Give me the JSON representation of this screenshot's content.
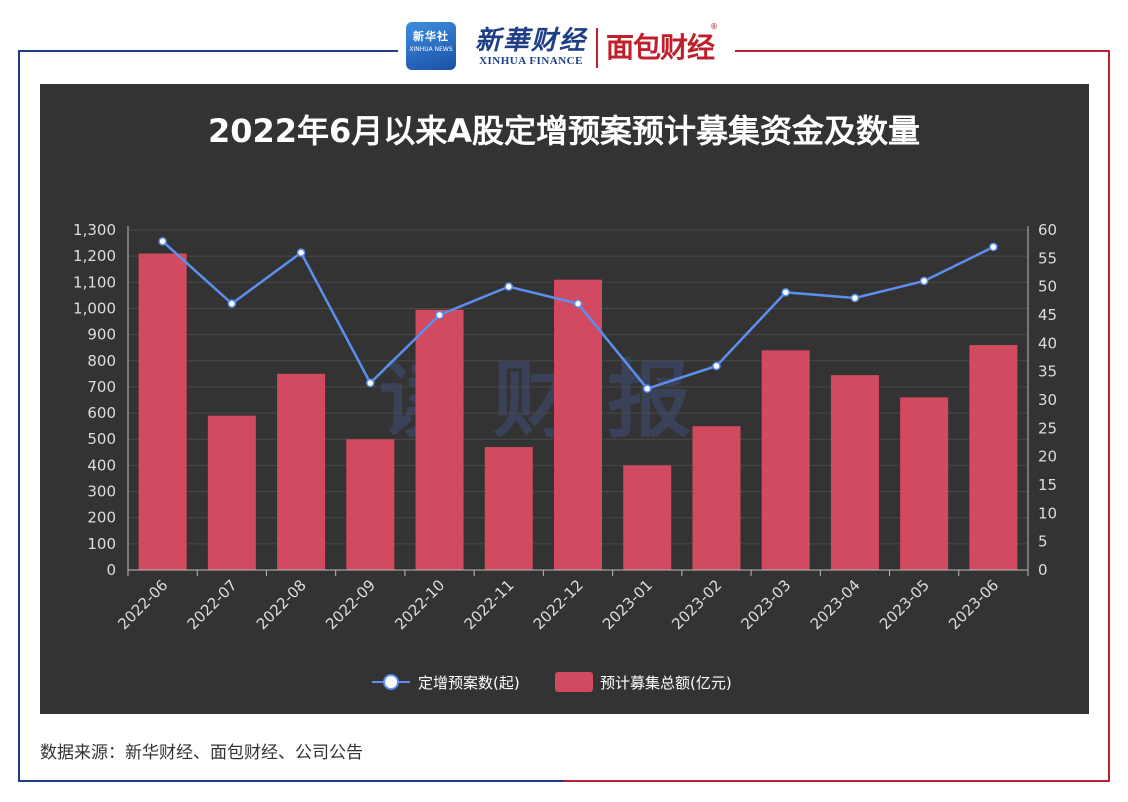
{
  "header": {
    "xinhua_badge_cn": "新华社",
    "xinhua_badge_en": "XINHUA NEWS",
    "xinhua_finance_cn": "新華财经",
    "xinhua_finance_en": "XINHUA FINANCE",
    "mianbao": "面包财经",
    "registered": "®"
  },
  "watermark": "读财报",
  "footer": {
    "source": "数据来源：新华财经、面包财经、公司公告"
  },
  "colors": {
    "bar": "#d24a5f",
    "line": "#5b8ff0",
    "panel": "#333333",
    "frame_blue": "#1e3f86",
    "frame_red": "#b8232f"
  },
  "chart_data": {
    "type": "bar",
    "title": "2022年6月以来A股定增预案预计募集资金及数量",
    "categories": [
      "2022-06",
      "2022-07",
      "2022-08",
      "2022-09",
      "2022-10",
      "2022-11",
      "2022-12",
      "2023-01",
      "2023-02",
      "2023-03",
      "2023-04",
      "2023-05",
      "2023-06"
    ],
    "series": [
      {
        "name": "预计募集总额(亿元)",
        "type": "bar",
        "axis": "left",
        "values": [
          1210,
          590,
          750,
          500,
          995,
          470,
          1110,
          400,
          550,
          840,
          745,
          660,
          860
        ]
      },
      {
        "name": "定增预案数(起)",
        "type": "line",
        "axis": "right",
        "values": [
          58,
          47,
          56,
          33,
          45,
          50,
          47,
          32,
          36,
          49,
          48,
          51,
          57
        ]
      }
    ],
    "y_left": {
      "min": 0,
      "max": 1300,
      "step": 100
    },
    "y_right": {
      "min": 0,
      "max": 60,
      "step": 5
    },
    "legend_position": "bottom-center",
    "grid": true
  }
}
